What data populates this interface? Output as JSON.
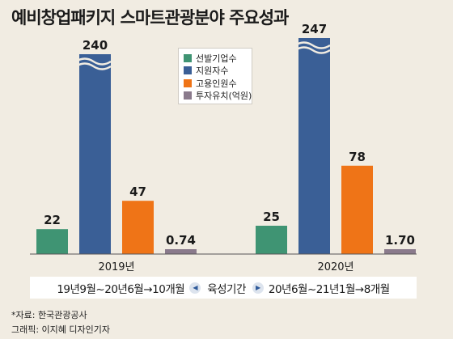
{
  "title": "예비창업패키지 스마트관광분야 주요성과",
  "legend": [
    {
      "label": "선발기업수",
      "color": "#3f9473"
    },
    {
      "label": "지원자수",
      "color": "#3a5f96"
    },
    {
      "label": "고용인원수",
      "color": "#ef7417"
    },
    {
      "label": "투자유치(억원)",
      "color": "#8a7a8c"
    }
  ],
  "period": {
    "left": "19년9월~20년6월→10개월",
    "middle": "육성기간",
    "right": "20년6월~21년1월→8개월",
    "left_arrow_icon": "triangle-left-icon",
    "right_arrow_icon": "triangle-right-icon"
  },
  "source": "*자료: 한국관광공사",
  "credit": "그래픽: 이지혜 디자인기자",
  "chart_data": {
    "type": "bar",
    "title": "예비창업패키지 스마트관광분야 주요성과",
    "categories": [
      "2019년",
      "2020년"
    ],
    "series": [
      {
        "name": "선발기업수",
        "values": [
          22,
          25
        ],
        "labels": [
          "22",
          "25"
        ]
      },
      {
        "name": "지원자수",
        "values": [
          240,
          247
        ],
        "labels": [
          "240",
          "247"
        ],
        "axis_break": true
      },
      {
        "name": "고용인원수",
        "values": [
          47,
          78
        ],
        "labels": [
          "47",
          "78"
        ]
      },
      {
        "name": "투자유치(억원)",
        "values": [
          0.74,
          1.7
        ],
        "labels": [
          "0.74",
          "1.70"
        ]
      }
    ],
    "axis_break_icon": "axis-break-wave-icon",
    "grid": false,
    "legend_position": "top-center"
  }
}
